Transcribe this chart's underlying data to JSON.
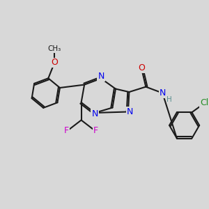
{
  "bg_color": "#d8d8d8",
  "bond_color": "#1a1a1a",
  "N_color": "#0000ee",
  "O_color": "#cc0000",
  "F_color": "#cc00cc",
  "Cl_color": "#228b22",
  "H_color": "#5a9090",
  "bond_lw": 1.5,
  "font_size": 9.0,
  "xlim": [
    0,
    10
  ],
  "ylim": [
    0,
    10
  ]
}
